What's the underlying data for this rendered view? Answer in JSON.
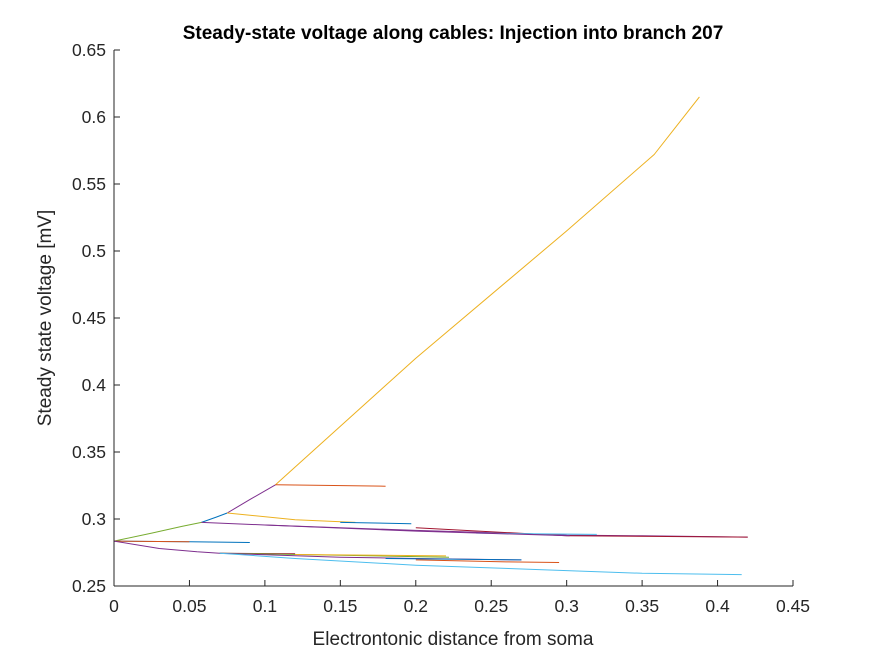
{
  "chart_data": {
    "type": "line",
    "title": "Steady-state voltage along cables: Injection into branch 207",
    "xlabel": "Electrontonic distance from soma",
    "ylabel": "Steady state voltage [mV]",
    "xlim": [
      0,
      0.45
    ],
    "ylim": [
      0.25,
      0.65
    ],
    "xticks": [
      0,
      0.05,
      0.1,
      0.15,
      0.2,
      0.25,
      0.3,
      0.35,
      0.4,
      0.45
    ],
    "xtick_labels": [
      "0",
      "0.05",
      "0.1",
      "0.15",
      "0.2",
      "0.25",
      "0.3",
      "0.35",
      "0.4",
      "0.45"
    ],
    "yticks": [
      0.25,
      0.3,
      0.35,
      0.4,
      0.45,
      0.5,
      0.55,
      0.6,
      0.65
    ],
    "ytick_labels": [
      "0.25",
      "0.3",
      "0.35",
      "0.4",
      "0.45",
      "0.5",
      "0.55",
      "0.6",
      "0.65"
    ],
    "grid": false,
    "legend": "none",
    "series": [
      {
        "color": "#77AC30",
        "x": [
          0,
          0.025,
          0.045,
          0.058
        ],
        "y": [
          0.2835,
          0.2895,
          0.2945,
          0.2975
        ]
      },
      {
        "color": "#0072BD",
        "x": [
          0.058,
          0.068,
          0.075
        ],
        "y": [
          0.2975,
          0.3015,
          0.3045
        ]
      },
      {
        "color": "#7E2F8E",
        "x": [
          0.075,
          0.09,
          0.107
        ],
        "y": [
          0.3045,
          0.3145,
          0.3255
        ]
      },
      {
        "color": "#EDB120",
        "x": [
          0.107,
          0.2,
          0.3,
          0.358,
          0.388
        ],
        "y": [
          0.3255,
          0.42,
          0.515,
          0.572,
          0.615
        ]
      },
      {
        "color": "#D95319",
        "x": [
          0.107,
          0.18
        ],
        "y": [
          0.3255,
          0.3245
        ]
      },
      {
        "color": "#EDB120",
        "x": [
          0.075,
          0.12,
          0.16
        ],
        "y": [
          0.3045,
          0.2995,
          0.2975
        ]
      },
      {
        "color": "#0072BD",
        "x": [
          0.15,
          0.197
        ],
        "y": [
          0.2975,
          0.2965
        ]
      },
      {
        "color": "#7E2F8E",
        "x": [
          0.058,
          0.1,
          0.15,
          0.2,
          0.26,
          0.3,
          0.35,
          0.42
        ],
        "y": [
          0.2975,
          0.2955,
          0.2935,
          0.2915,
          0.2895,
          0.288,
          0.2875,
          0.2865
        ]
      },
      {
        "color": "#A2142F",
        "x": [
          0.2,
          0.3,
          0.42
        ],
        "y": [
          0.2935,
          0.2875,
          0.2865
        ]
      },
      {
        "color": "#4DBEEE",
        "x": [
          0.24,
          0.32
        ],
        "y": [
          0.2895,
          0.2885
        ]
      },
      {
        "color": "#7E2F8E",
        "x": [
          0.1,
          0.2,
          0.302
        ],
        "y": [
          0.2955,
          0.291,
          0.2875
        ]
      },
      {
        "color": "#0072BD",
        "x": [
          0,
          0.05,
          0.09
        ],
        "y": [
          0.2835,
          0.283,
          0.2825
        ]
      },
      {
        "color": "#D95319",
        "x": [
          0,
          0.05
        ],
        "y": [
          0.2835,
          0.283
        ]
      },
      {
        "color": "#7E2F8E",
        "x": [
          0,
          0.03,
          0.055,
          0.07
        ],
        "y": [
          0.2835,
          0.278,
          0.2755,
          0.2745
        ]
      },
      {
        "color": "#A2142F",
        "x": [
          0.07,
          0.12
        ],
        "y": [
          0.2745,
          0.274
        ]
      },
      {
        "color": "#77AC30",
        "x": [
          0.07,
          0.15,
          0.222
        ],
        "y": [
          0.2745,
          0.273,
          0.2715
        ]
      },
      {
        "color": "#EDB120",
        "x": [
          0.12,
          0.22
        ],
        "y": [
          0.2735,
          0.2725
        ]
      },
      {
        "color": "#7E2F8E",
        "x": [
          0.07,
          0.15,
          0.2,
          0.27
        ],
        "y": [
          0.2745,
          0.2715,
          0.2705,
          0.2695
        ]
      },
      {
        "color": "#0072BD",
        "x": [
          0.18,
          0.27
        ],
        "y": [
          0.2705,
          0.2695
        ]
      },
      {
        "color": "#D95319",
        "x": [
          0.2,
          0.26,
          0.295
        ],
        "y": [
          0.2695,
          0.268,
          0.2675
        ]
      },
      {
        "color": "#4DBEEE",
        "x": [
          0.07,
          0.12,
          0.2,
          0.3,
          0.35,
          0.416
        ],
        "y": [
          0.2745,
          0.2705,
          0.2655,
          0.2615,
          0.2595,
          0.2585
        ]
      }
    ]
  }
}
